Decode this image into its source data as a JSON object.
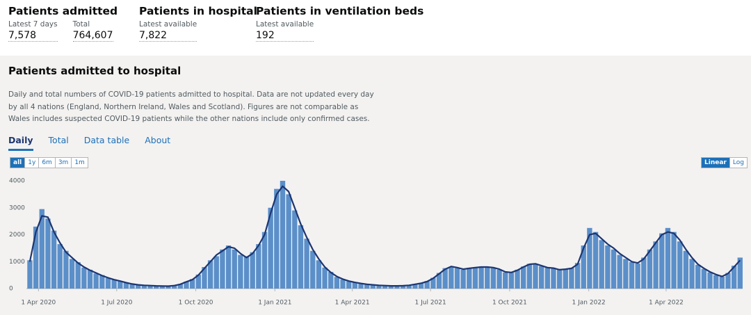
{
  "header": {
    "cards": [
      {
        "title": "Patients admitted",
        "items": [
          {
            "label": "Latest 7 days",
            "value": "7,578"
          },
          {
            "label": "Total",
            "value": "764,607"
          }
        ]
      },
      {
        "title": "Patients in hospital",
        "items": [
          {
            "label": "Latest available",
            "value": "7,822"
          }
        ]
      },
      {
        "title": "Patients in ventilation beds",
        "items": [
          {
            "label": "Latest available",
            "value": "192"
          }
        ]
      }
    ]
  },
  "card": {
    "title": "Patients admitted to hospital",
    "description": "Daily and total numbers of COVID-19 patients admitted to hospital. Data are not updated every day by all 4 nations (England, Northern Ireland, Wales and Scotland). Figures are not comparable as Wales includes suspected COVID-19 patients while the other nations include only confirmed cases.",
    "tabs": [
      "Daily",
      "Total",
      "Data table",
      "About"
    ],
    "ranges": [
      "all",
      "1y",
      "6m",
      "3m",
      "1m"
    ],
    "scales": [
      "Linear",
      "Log"
    ]
  },
  "chart_data": {
    "type": "bar",
    "x": [
      "2020-03-22",
      "2020-03-29",
      "2020-04-05",
      "2020-04-12",
      "2020-04-19",
      "2020-04-26",
      "2020-05-03",
      "2020-05-10",
      "2020-05-17",
      "2020-05-24",
      "2020-05-31",
      "2020-06-07",
      "2020-06-14",
      "2020-06-21",
      "2020-06-28",
      "2020-07-05",
      "2020-07-12",
      "2020-07-19",
      "2020-07-26",
      "2020-08-02",
      "2020-08-09",
      "2020-08-16",
      "2020-08-23",
      "2020-08-30",
      "2020-09-06",
      "2020-09-13",
      "2020-09-20",
      "2020-09-27",
      "2020-10-04",
      "2020-10-11",
      "2020-10-18",
      "2020-10-25",
      "2020-11-01",
      "2020-11-08",
      "2020-11-15",
      "2020-11-22",
      "2020-11-29",
      "2020-12-06",
      "2020-12-13",
      "2020-12-20",
      "2020-12-27",
      "2021-01-03",
      "2021-01-10",
      "2021-01-17",
      "2021-01-24",
      "2021-01-31",
      "2021-02-07",
      "2021-02-14",
      "2021-02-21",
      "2021-02-28",
      "2021-03-07",
      "2021-03-14",
      "2021-03-21",
      "2021-03-28",
      "2021-04-04",
      "2021-04-11",
      "2021-04-18",
      "2021-04-25",
      "2021-05-02",
      "2021-05-09",
      "2021-05-16",
      "2021-05-23",
      "2021-05-30",
      "2021-06-06",
      "2021-06-13",
      "2021-06-20",
      "2021-06-27",
      "2021-07-04",
      "2021-07-11",
      "2021-07-18",
      "2021-07-25",
      "2021-08-01",
      "2021-08-08",
      "2021-08-15",
      "2021-08-22",
      "2021-08-29",
      "2021-09-05",
      "2021-09-12",
      "2021-09-19",
      "2021-09-26",
      "2021-10-03",
      "2021-10-10",
      "2021-10-17",
      "2021-10-24",
      "2021-10-31",
      "2021-11-07",
      "2021-11-14",
      "2021-11-21",
      "2021-11-28",
      "2021-12-05",
      "2021-12-12",
      "2021-12-19",
      "2021-12-26",
      "2022-01-02",
      "2022-01-09",
      "2022-01-16",
      "2022-01-23",
      "2022-01-30",
      "2022-02-06",
      "2022-02-13",
      "2022-02-20",
      "2022-02-27",
      "2022-03-06",
      "2022-03-13",
      "2022-03-20",
      "2022-03-27",
      "2022-04-03",
      "2022-04-10",
      "2022-04-17",
      "2022-04-24",
      "2022-05-01",
      "2022-05-08",
      "2022-05-15",
      "2022-05-22",
      "2022-05-29",
      "2022-06-05",
      "2022-06-12",
      "2022-06-19",
      "2022-06-26"
    ],
    "series": [
      {
        "type": "bar",
        "color": "#5b8fc9",
        "values": [
          1050,
          2300,
          2950,
          2600,
          2150,
          1650,
          1400,
          1100,
          980,
          780,
          700,
          560,
          500,
          390,
          340,
          270,
          230,
          160,
          150,
          115,
          105,
          95,
          90,
          85,
          120,
          170,
          260,
          350,
          520,
          800,
          1050,
          1200,
          1450,
          1600,
          1450,
          1250,
          1200,
          1350,
          1650,
          2100,
          3000,
          3700,
          4000,
          3500,
          2900,
          2350,
          1850,
          1400,
          1050,
          780,
          620,
          430,
          340,
          270,
          220,
          185,
          150,
          135,
          115,
          105,
          95,
          100,
          110,
          125,
          170,
          210,
          280,
          400,
          580,
          760,
          800,
          760,
          700,
          770,
          790,
          820,
          780,
          760,
          700,
          600,
          590,
          700,
          820,
          920,
          900,
          830,
          770,
          740,
          690,
          730,
          770,
          950,
          1600,
          2250,
          2100,
          1800,
          1600,
          1450,
          1250,
          1100,
          980,
          930,
          1150,
          1450,
          1750,
          2050,
          2250,
          2100,
          1750,
          1400,
          1100,
          880,
          730,
          600,
          500,
          440,
          580,
          850,
          1150
        ]
      },
      {
        "type": "line",
        "color": "#1d3570",
        "values": [
          1000,
          2100,
          2700,
          2650,
          2100,
          1700,
          1350,
          1150,
          950,
          800,
          680,
          580,
          480,
          400,
          330,
          280,
          220,
          170,
          140,
          120,
          110,
          100,
          95,
          90,
          110,
          160,
          250,
          330,
          500,
          750,
          1000,
          1250,
          1400,
          1550,
          1500,
          1300,
          1150,
          1300,
          1600,
          2000,
          2800,
          3500,
          3800,
          3600,
          3000,
          2400,
          1900,
          1450,
          1100,
          800,
          600,
          450,
          350,
          280,
          230,
          190,
          160,
          140,
          120,
          110,
          100,
          100,
          105,
          120,
          160,
          200,
          260,
          380,
          550,
          720,
          820,
          780,
          720,
          750,
          780,
          800,
          800,
          780,
          720,
          620,
          600,
          680,
          800,
          900,
          920,
          850,
          780,
          760,
          700,
          720,
          750,
          900,
          1500,
          2000,
          2050,
          1850,
          1650,
          1500,
          1300,
          1150,
          1000,
          950,
          1100,
          1400,
          1700,
          2000,
          2100,
          2050,
          1800,
          1450,
          1150,
          900,
          750,
          620,
          520,
          450,
          560,
          800,
          1050
        ]
      }
    ],
    "xlim": [
      "2020-03-18",
      "2022-06-29"
    ],
    "xticks": [
      {
        "value": "2020-04-01",
        "label": "1 Apr 2020"
      },
      {
        "value": "2020-07-01",
        "label": "1 Jul 2020"
      },
      {
        "value": "2020-10-01",
        "label": "1 Oct 2020"
      },
      {
        "value": "2021-01-01",
        "label": "1 Jan 2021"
      },
      {
        "value": "2021-04-01",
        "label": "1 Apr 2021"
      },
      {
        "value": "2021-07-01",
        "label": "1 Jul 2021"
      },
      {
        "value": "2021-10-01",
        "label": "1 Oct 2021"
      },
      {
        "value": "2022-01-01",
        "label": "1 Jan 2022"
      },
      {
        "value": "2022-04-01",
        "label": "1 Apr 2022"
      }
    ],
    "ylim": [
      0,
      4000
    ],
    "yticks": [
      0,
      1000,
      2000,
      3000,
      4000
    ]
  }
}
